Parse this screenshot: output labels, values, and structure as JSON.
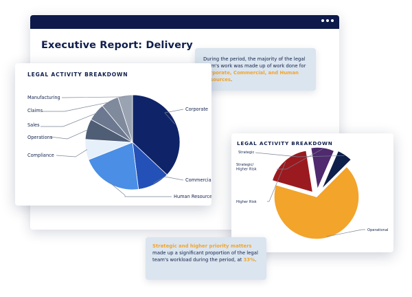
{
  "window": {
    "title": "Executive Report: Delivery",
    "menu_icon": "more-horizontal-icon"
  },
  "callout_top": {
    "text_before": "During the period, the majority of the legal team's work was made up of work done for ",
    "highlight": "Corporate, Commercial, and Human Resources",
    "text_after": "."
  },
  "callout_bottom": {
    "highlight": "Strategic and higher priority matters",
    "text_middle": " made up a significant proportion of the legal team's workload during the period, at ",
    "highlight_value": "33%",
    "text_after": "."
  },
  "colors": {
    "navy": "#0f2468",
    "blue": "#2451b8",
    "light_blue": "#4a8ee6",
    "orange": "#f2a42b",
    "maroon": "#9b1a1f",
    "purple": "#4f2a6e"
  },
  "chart_data": [
    {
      "type": "pie",
      "title": "LEGAL ACTIVITY BREAKDOWN",
      "categories": [
        "Corporate",
        "Commercial",
        "Human Resources",
        "Compliance",
        "Operations",
        "Sales",
        "Claims",
        "Manufacturing"
      ],
      "values": [
        37,
        11,
        21,
        7,
        7,
        6,
        6,
        5
      ],
      "colors": [
        "#0f2468",
        "#2451b8",
        "#4a8ee6",
        "#e6f0fb",
        "#4f5d75",
        "#6c7890",
        "#7f8a9c",
        "#9aa3b2"
      ]
    },
    {
      "type": "pie",
      "title": "LEGAL ACTIVITY BREAKDOWN",
      "categories": [
        "Operational",
        "Higher Risk",
        "Strategic/ Higher Risk",
        "Strategic"
      ],
      "values": [
        67,
        18,
        9,
        6
      ],
      "colors": [
        "#f2a42b",
        "#9b1a1f",
        "#4f2a6e",
        "#0f1f4b"
      ]
    }
  ]
}
